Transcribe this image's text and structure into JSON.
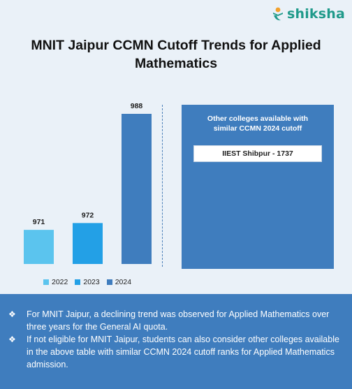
{
  "brand": {
    "logo_text": "shiksha",
    "accent": "#1f9a8a"
  },
  "page_title": "MNIT Jaipur CCMN Cutoff Trends for Applied Mathematics",
  "chart_data": {
    "type": "bar",
    "title": "MNIT Jaipur CCMN Cutoff Trends for Applied Mathematics",
    "categories": [
      "2022",
      "2023",
      "2024"
    ],
    "values": [
      971,
      972,
      988
    ],
    "colors": [
      "#5bc4ee",
      "#23a0e6",
      "#3f7dbe"
    ],
    "xlabel": "",
    "ylabel": "",
    "grid": false,
    "legend": "bottom-left"
  },
  "side_panel": {
    "heading": "Other colleges available with similar CCMN 2024 cutoff",
    "college": "IIEST Shibpur - 1737"
  },
  "notes": [
    "For MNIT Jaipur, a declining trend was observed for Applied Mathematics over three years for the General AI quota.",
    "If not eligible for MNIT Jaipur, students can also consider other colleges available in the above table with similar CCMN 2024 cutoff ranks for Applied Mathematics admission."
  ],
  "note_bullet_icon": "diamond-bullet-icon",
  "colors": {
    "panel": "#3f7dbe",
    "background": "#eaf1f8"
  }
}
